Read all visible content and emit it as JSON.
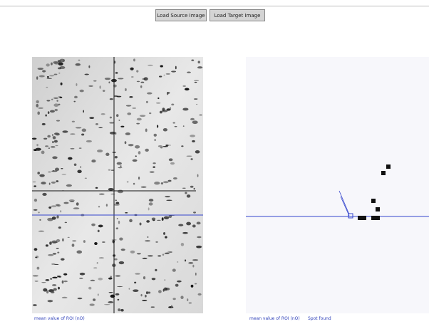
{
  "toolbar": {
    "buttons": [
      "Load Source Image",
      "Load Target Image"
    ]
  },
  "source_panel": {
    "caption": "mean value of ROI (nO)"
  },
  "target_panel": {
    "caption": "mean value of ROI (nO)",
    "status": "Spot found"
  }
}
